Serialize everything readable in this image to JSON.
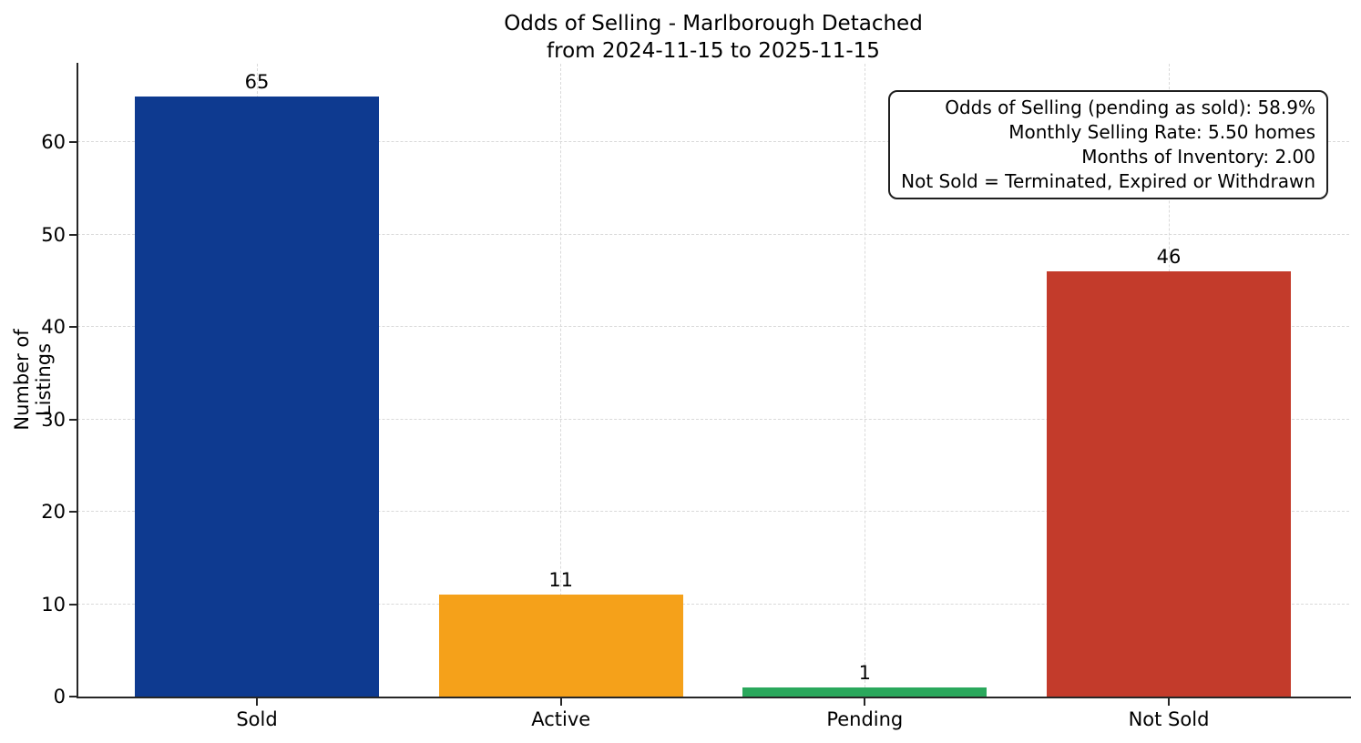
{
  "figure": {
    "background": "#ffffff",
    "axis_color": "#262626",
    "grid_color": "#d9d9d9",
    "grid_style": "dashed"
  },
  "chart_data": {
    "type": "bar",
    "title_lines": [
      "Odds of Selling - Marlborough Detached",
      "from 2024-11-15 to 2025-11-15"
    ],
    "xlabel": "",
    "ylabel": "Number of Listings",
    "categories": [
      "Sold",
      "Active",
      "Pending",
      "Not Sold"
    ],
    "values": [
      65,
      11,
      1,
      46
    ],
    "bar_value_labels": [
      "65",
      "11",
      "1",
      "46"
    ],
    "bar_colors": [
      "#0e3a90",
      "#f5a11a",
      "#2aa85c",
      "#c33b2b"
    ],
    "yticks": [
      0,
      10,
      20,
      30,
      40,
      50,
      60
    ],
    "ylim": [
      0,
      68.5
    ],
    "grid": true,
    "legend_position": "none",
    "annotation_box": {
      "text_align": "right",
      "lines": [
        "Odds of Selling (pending as sold): 58.9%",
        "Monthly Selling Rate: 5.50 homes",
        "Months of Inventory: 2.00",
        "Not Sold = Terminated, Expired or Withdrawn"
      ]
    }
  }
}
